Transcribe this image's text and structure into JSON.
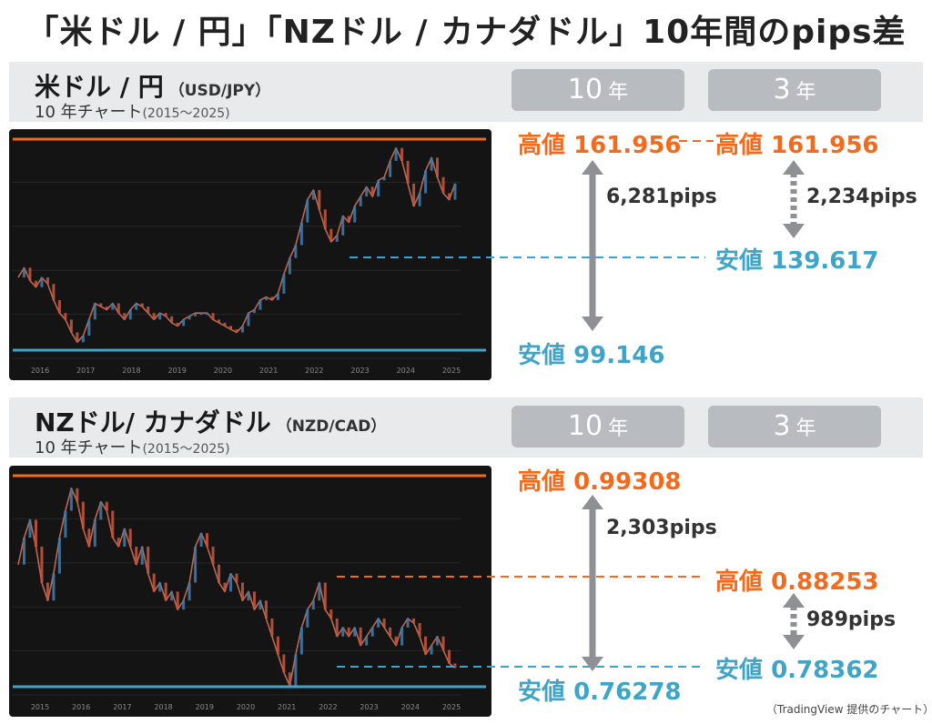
{
  "title": "「米ドル / 円」「NZドル / カナダドル」10年間のpips差",
  "year_unit": "年",
  "credit": "（TradingView 提供のチャート）",
  "colors": {
    "high": "#f26b1d",
    "low": "#3ea4c8",
    "arrow": "#8e9094",
    "pill": "#b8bcc1"
  },
  "chart_data": [
    {
      "type": "line",
      "pair_name": "米ドル / 円",
      "pair_code": "（USD/JPY）",
      "subtitle": "10 年チャート",
      "period": "(2015～2025)",
      "period_labels": [
        "10",
        "3"
      ],
      "x_ticks": [
        "2016",
        "2017",
        "2018",
        "2019",
        "2020",
        "2021",
        "2022",
        "2023",
        "2024",
        "2025"
      ],
      "ten_year": {
        "high_label": "高値",
        "high": "161.956",
        "low_label": "安値",
        "low": "99.146",
        "diff": "6,281pips"
      },
      "three_year": {
        "high_label": "高値",
        "high": "161.956",
        "low_label": "安値",
        "low": "139.617",
        "diff": "2,234pips"
      },
      "ylim": [
        96,
        164
      ],
      "series": [
        {
          "values": [
            121,
            124,
            120,
            118,
            121,
            119,
            114,
            110,
            108,
            104,
            101,
            103,
            108,
            113,
            112,
            111,
            113,
            110,
            108,
            111,
            113,
            112,
            110,
            108,
            110,
            109,
            107,
            106,
            108,
            109,
            110,
            110,
            110,
            108,
            107,
            106,
            105,
            104,
            106,
            110,
            111,
            114,
            115,
            114,
            116,
            122,
            127,
            131,
            138,
            145,
            148,
            142,
            136,
            132,
            134,
            140,
            138,
            143,
            146,
            149,
            146,
            151,
            152,
            157,
            161,
            157,
            150,
            143,
            147,
            154,
            158,
            152,
            147,
            145,
            150
          ]
        }
      ]
    },
    {
      "type": "line",
      "pair_name": "NZドル/ カナダドル",
      "pair_code": "（NZD/CAD）",
      "subtitle": "10 年チャート",
      "period": "(2015～2025)",
      "period_labels": [
        "10",
        "3"
      ],
      "x_ticks": [
        "2015",
        "2016",
        "2017",
        "2018",
        "2019",
        "2020",
        "2021",
        "2022",
        "2023",
        "2024",
        "2025"
      ],
      "ten_year": {
        "high_label": "高値",
        "high": "0.99308",
        "low_label": "安値",
        "low": "0.76278",
        "diff": "2,303pips"
      },
      "three_year": {
        "high_label": "高値",
        "high": "0.88253",
        "low_label": "安値",
        "low": "0.78362",
        "diff": "989pips"
      },
      "ylim": [
        0.755,
        1.0
      ],
      "series": [
        {
          "values": [
            0.9,
            0.93,
            0.95,
            0.92,
            0.88,
            0.86,
            0.89,
            0.93,
            0.96,
            0.985,
            0.97,
            0.94,
            0.92,
            0.95,
            0.97,
            0.96,
            0.93,
            0.92,
            0.94,
            0.92,
            0.9,
            0.92,
            0.89,
            0.87,
            0.88,
            0.86,
            0.87,
            0.85,
            0.86,
            0.88,
            0.92,
            0.935,
            0.92,
            0.9,
            0.88,
            0.87,
            0.89,
            0.88,
            0.86,
            0.87,
            0.85,
            0.86,
            0.84,
            0.82,
            0.8,
            0.78,
            0.765,
            0.8,
            0.83,
            0.85,
            0.86,
            0.88,
            0.85,
            0.84,
            0.82,
            0.83,
            0.82,
            0.83,
            0.81,
            0.82,
            0.83,
            0.84,
            0.83,
            0.82,
            0.81,
            0.83,
            0.84,
            0.835,
            0.82,
            0.8,
            0.81,
            0.82,
            0.805,
            0.79,
            0.785
          ]
        }
      ]
    }
  ]
}
